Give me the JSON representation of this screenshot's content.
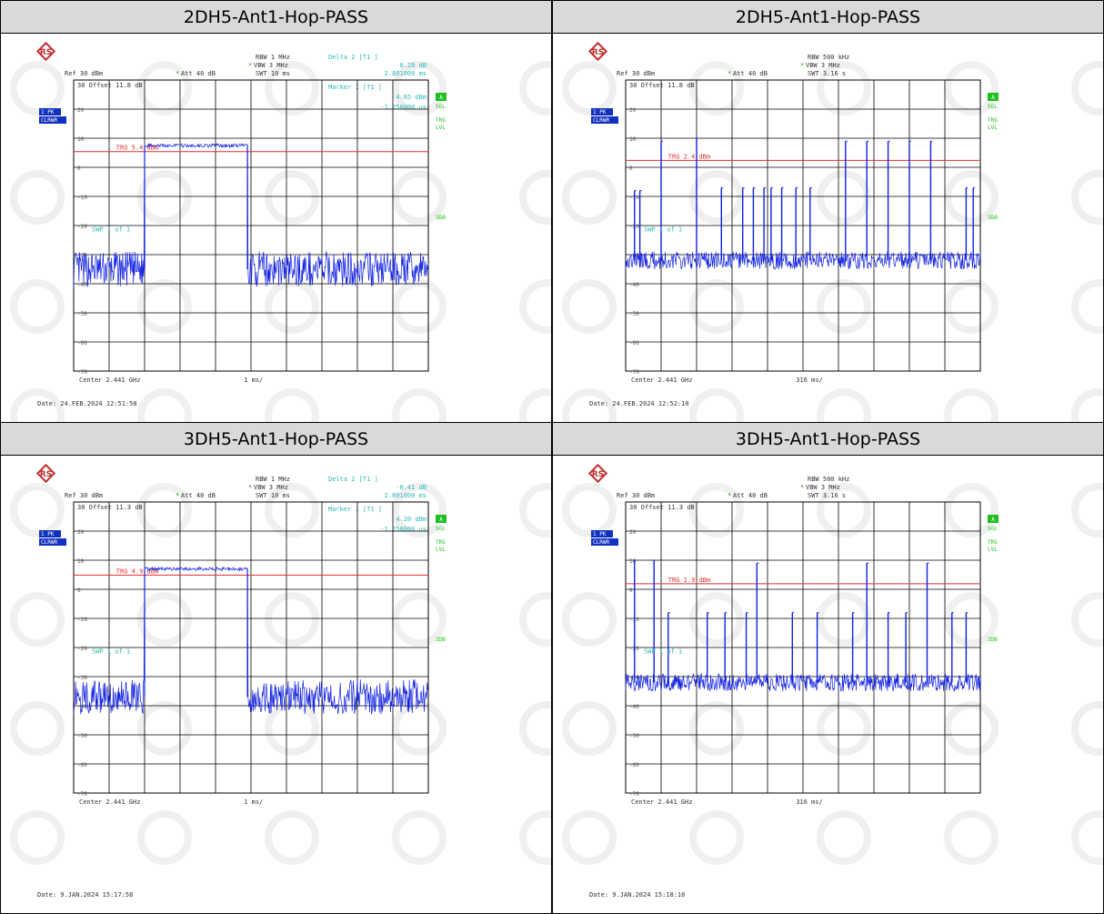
{
  "colors": {
    "trace": "#1020e0",
    "trigger": "#e03030",
    "annotation": "#30b8b8",
    "badge_green": "#20c020",
    "badge_blue": "#1030c0",
    "header_bg": "#d9d9d9"
  },
  "panels": [
    {
      "header": "2DH5-Ant1-Hop-PASS",
      "ref": "Ref  30 dBm",
      "att": "Att  40 dB",
      "rbw": "RBW 1 MHz",
      "vbw": "VBW 3 MHz",
      "swt": "SWT 10 ms",
      "offset": "30 Offset  11.8 dB",
      "delta_title": "Delta 2 [T1 ]",
      "delta_val1": "0.20 dB",
      "delta_val2": "2.891000 ms",
      "marker_title": "Marker 1 [T1 ]",
      "marker_val1": "4.65 dBm",
      "marker_val2": "-1.250000 us",
      "trg": "TRG 5.4 dBm",
      "swp": "SWP   1 of   1",
      "center": "Center 2.441 GHz",
      "span": "1 ms/",
      "date": "Date: 24.FEB.2024  12:51:58",
      "badge_a": "A",
      "badge_sgl": "SGL",
      "badge_trg": "TRG",
      "badge_lvl": "LVL",
      "badge_3db": "3DB",
      "badge_1pk": "1 PK",
      "badge_clrwr": "CLRWR",
      "y_ticks": [
        "20",
        "10",
        "0",
        "-10",
        "-20",
        "-30",
        "-40",
        "-50",
        "-60",
        "-70"
      ]
    },
    {
      "header": "2DH5-Ant1-Hop-PASS",
      "ref": "Ref  30 dBm",
      "att": "Att  40 dB",
      "rbw": "RBW 500 kHz",
      "vbw": "VBW 3 MHz",
      "swt": "SWT 3.16 s",
      "offset": "30 Offset  11.8 dB",
      "trg": "TRG 2.4 dBm",
      "swp": "SWP   1 of   1",
      "center": "Center 2.441 GHz",
      "span": "316 ms/",
      "date": "Date: 24.FEB.2024  12:52:10",
      "badge_a": "A",
      "badge_sgl": "SGL",
      "badge_trg": "TRG",
      "badge_lvl": "LVL",
      "badge_3db": "3DB",
      "badge_1pk": "1 PK",
      "badge_clrwr": "CLRWR",
      "y_ticks": [
        "20",
        "10",
        "0",
        "-10",
        "-20",
        "-30",
        "-40",
        "-50",
        "-60",
        "-70"
      ]
    },
    {
      "header": "3DH5-Ant1-Hop-PASS",
      "ref": "Ref  30 dBm",
      "att": "Att  40 dB",
      "rbw": "RBW 1 MHz",
      "vbw": "VBW 3 MHz",
      "swt": "SWT 10 ms",
      "offset": "30 Offset  11.3 dB",
      "delta_title": "Delta 2 [T1 ]",
      "delta_val1": "-0.41 dB",
      "delta_val2": "2.891000 ms",
      "marker_title": "Marker 1 [T1 ]",
      "marker_val1": "4.20 dBm",
      "marker_val2": "-1.250000 us",
      "trg": "TRG 4.9 dBm",
      "swp": "SWP   1 of   1",
      "center": "Center 2.441 GHz",
      "span": "1 ms/",
      "date": "Date: 9.JAN.2024  15:17:58",
      "badge_a": "A",
      "badge_sgl": "SGL",
      "badge_trg": "TRG",
      "badge_lvl": "LVL",
      "badge_3db": "3DB",
      "badge_1pk": "1 PK",
      "badge_clrwr": "CLRWR",
      "y_ticks": [
        "20",
        "10",
        "0",
        "-10",
        "-20",
        "-30",
        "-40",
        "-50",
        "-60",
        "-70"
      ]
    },
    {
      "header": "3DH5-Ant1-Hop-PASS",
      "ref": "Ref  30 dBm",
      "att": "Att  40 dB",
      "rbw": "RBW 500 kHz",
      "vbw": "VBW 3 MHz",
      "swt": "SWT 3.16 s",
      "offset": "30 Offset  11.3 dB",
      "trg": "TRG 1.9 dBm",
      "swp": "SWP   1 of   1",
      "center": "Center 2.441 GHz",
      "span": "316 ms/",
      "date": "Date: 9.JAN.2024  15:18:10",
      "badge_a": "A",
      "badge_sgl": "SGL",
      "badge_trg": "TRG",
      "badge_lvl": "LVL",
      "badge_3db": "3DB",
      "badge_1pk": "1 PK",
      "badge_clrwr": "CLRWR",
      "y_ticks": [
        "20",
        "10",
        "0",
        "-10",
        "-20",
        "-30",
        "-40",
        "-50",
        "-60",
        "-70"
      ]
    }
  ],
  "chart_data": [
    {
      "type": "line",
      "ylim": [
        -70,
        30
      ],
      "x_divisions": 10,
      "trigger_level": 5.4,
      "noise_floor": -35,
      "noise_spread": 6,
      "pulses": [
        {
          "start_div": 2.0,
          "end_div": 4.9,
          "level": 7.5
        }
      ]
    },
    {
      "type": "line",
      "ylim": [
        -70,
        30
      ],
      "x_divisions": 10,
      "trigger_level": 2.4,
      "noise_floor": -32,
      "noise_spread": 3,
      "spikes": [
        {
          "pos": 0.25,
          "level": -8
        },
        {
          "pos": 0.4,
          "level": -8
        },
        {
          "pos": 1.0,
          "level": 9
        },
        {
          "pos": 2.0,
          "level": 10
        },
        {
          "pos": 2.7,
          "level": -7
        },
        {
          "pos": 3.3,
          "level": -7
        },
        {
          "pos": 3.6,
          "level": -7
        },
        {
          "pos": 3.9,
          "level": -7
        },
        {
          "pos": 4.1,
          "level": -7
        },
        {
          "pos": 4.4,
          "level": -7
        },
        {
          "pos": 4.8,
          "level": -7
        },
        {
          "pos": 5.2,
          "level": -7
        },
        {
          "pos": 6.2,
          "level": 9
        },
        {
          "pos": 6.8,
          "level": 9
        },
        {
          "pos": 7.4,
          "level": 9
        },
        {
          "pos": 8.0,
          "level": 9
        },
        {
          "pos": 8.6,
          "level": 9
        },
        {
          "pos": 9.6,
          "level": -7
        },
        {
          "pos": 9.8,
          "level": -7
        }
      ]
    },
    {
      "type": "line",
      "ylim": [
        -70,
        30
      ],
      "x_divisions": 10,
      "trigger_level": 4.9,
      "noise_floor": -37,
      "noise_spread": 6,
      "pulses": [
        {
          "start_div": 2.0,
          "end_div": 4.9,
          "level": 7
        }
      ]
    },
    {
      "type": "line",
      "ylim": [
        -70,
        30
      ],
      "x_divisions": 10,
      "trigger_level": 1.9,
      "noise_floor": -32,
      "noise_spread": 3,
      "spikes": [
        {
          "pos": 0.25,
          "level": 10
        },
        {
          "pos": 0.8,
          "level": 10
        },
        {
          "pos": 1.2,
          "level": -8
        },
        {
          "pos": 2.3,
          "level": -8
        },
        {
          "pos": 2.8,
          "level": -8
        },
        {
          "pos": 3.4,
          "level": -8
        },
        {
          "pos": 3.7,
          "level": 9
        },
        {
          "pos": 4.7,
          "level": -8
        },
        {
          "pos": 5.4,
          "level": -8
        },
        {
          "pos": 6.4,
          "level": -8
        },
        {
          "pos": 6.8,
          "level": 9
        },
        {
          "pos": 7.4,
          "level": -8
        },
        {
          "pos": 7.9,
          "level": -8
        },
        {
          "pos": 8.5,
          "level": 9
        },
        {
          "pos": 9.2,
          "level": -8
        },
        {
          "pos": 9.6,
          "level": -8
        }
      ]
    }
  ]
}
